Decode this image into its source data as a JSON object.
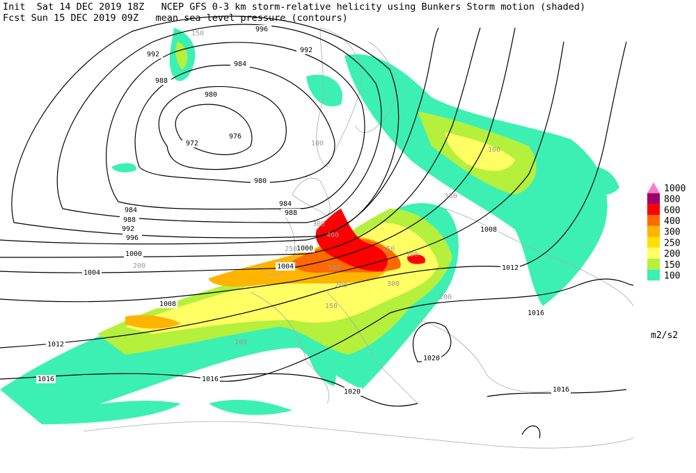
{
  "header": {
    "line1": "Init  Sat 14 DEC 2019 18Z   NCEP GFS 0-3 km storm-relative helicity using Bunkers Storm motion (shaded)",
    "line2": "Fcst Sun 15 DEC 2019 09Z   mean sea level pressure (contours)"
  },
  "legend": {
    "items": [
      {
        "label": "1000",
        "color": "#f47fc8"
      },
      {
        "label": "800",
        "color": "#a0006e"
      },
      {
        "label": "600",
        "color": "#ff0000"
      },
      {
        "label": "400",
        "color": "#ff6a00"
      },
      {
        "label": "300",
        "color": "#ffb400"
      },
      {
        "label": "250",
        "color": "#ffe000"
      },
      {
        "label": "200",
        "color": "#ffff64"
      },
      {
        "label": "150",
        "color": "#b4f03c"
      },
      {
        "label": "100",
        "color": "#3cf0b4"
      }
    ],
    "unit": "m2/s2"
  },
  "contour_labels": [
    "996",
    "992",
    "992",
    "984",
    "988",
    "980",
    "976",
    "972",
    "980",
    "984",
    "988",
    "992",
    "996",
    "1000",
    "1004",
    "1004",
    "1008",
    "1012",
    "1016",
    "1016",
    "1020",
    "1020",
    "1016",
    "1012",
    "1008",
    "1016",
    "1000",
    "988",
    "984"
  ],
  "shading_labels": [
    "150",
    "100",
    "200",
    "250",
    "300",
    "400",
    "300",
    "250",
    "200",
    "150",
    "100",
    "500",
    "300",
    "200",
    "150",
    "100"
  ]
}
